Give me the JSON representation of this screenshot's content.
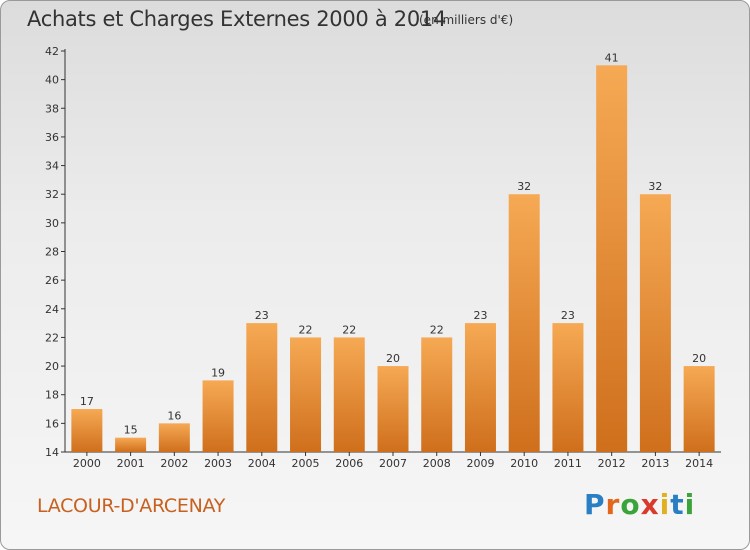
{
  "title": "Achats et Charges Externes 2000 à 2014",
  "unit": "(en milliers d'€)",
  "commune": "LACOUR-D'ARCENAY",
  "brand": "Proxiti",
  "colors": {
    "bar_top": "#f6a954",
    "bar_bottom": "#cf6f1c",
    "commune_text": "#c8601e"
  },
  "chart_data": {
    "type": "bar",
    "categories": [
      "2000",
      "2001",
      "2002",
      "2003",
      "2004",
      "2005",
      "2006",
      "2007",
      "2008",
      "2009",
      "2010",
      "2011",
      "2012",
      "2013",
      "2014"
    ],
    "values": [
      17,
      15,
      16,
      19,
      23,
      22,
      22,
      20,
      22,
      23,
      32,
      23,
      41,
      32,
      20
    ],
    "ylim": [
      14,
      42
    ],
    "yticks": [
      14,
      16,
      18,
      20,
      22,
      24,
      26,
      28,
      30,
      32,
      34,
      36,
      38,
      40,
      42
    ],
    "grid": false,
    "xlabel": "",
    "ylabel": ""
  }
}
